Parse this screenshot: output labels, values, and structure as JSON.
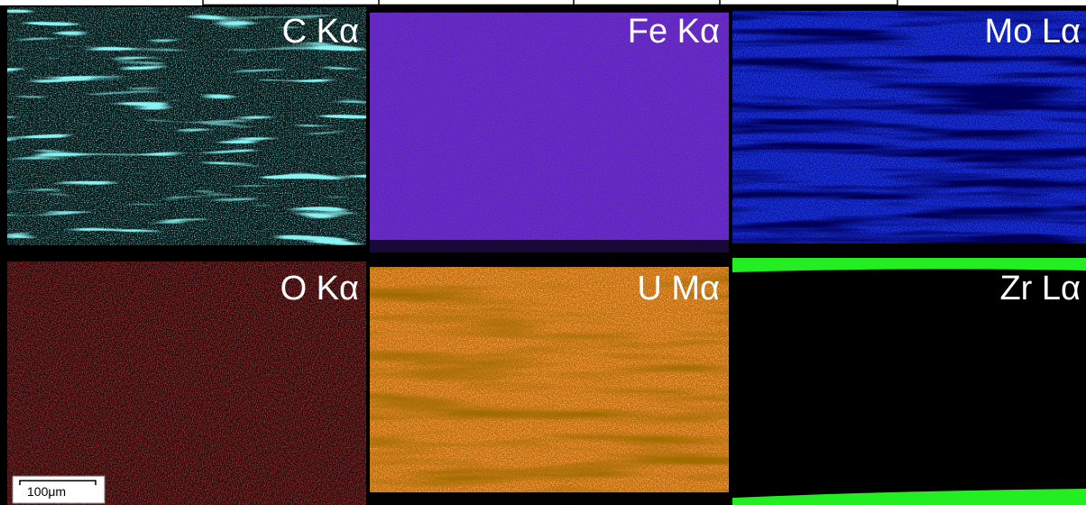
{
  "panels": [
    {
      "label": "C Kα"
    },
    {
      "label": "Fe Kα"
    },
    {
      "label": "Mo Lα"
    },
    {
      "label": "O Kα"
    },
    {
      "label": "U Mα"
    },
    {
      "label": "Zr Lα"
    }
  ],
  "scale_bar": {
    "label": "100μm"
  }
}
